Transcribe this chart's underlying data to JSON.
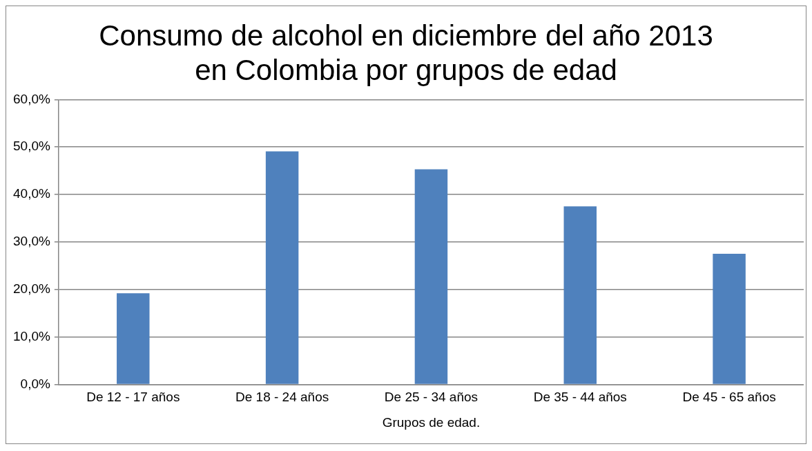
{
  "chart_data": {
    "type": "bar",
    "title": "Consumo de alcohol en diciembre del año 2013 en Colombia por grupos de edad",
    "categories": [
      "De 12 - 17 años",
      "De 18 - 24 años",
      "De 25 - 34 años",
      "De 35 - 44 años",
      "De 45 - 65 años"
    ],
    "values": [
      19.2,
      49.1,
      45.3,
      37.5,
      27.5
    ],
    "color": "#4f81bd",
    "xlabel": "Grupos de edad.",
    "ylim": [
      0,
      60
    ],
    "yticks": [
      {
        "value": 0,
        "label": "0,0%"
      },
      {
        "value": 10,
        "label": "10,0%"
      },
      {
        "value": 20,
        "label": "20,0%"
      },
      {
        "value": 30,
        "label": "30,0%"
      },
      {
        "value": 40,
        "label": "40,0%"
      },
      {
        "value": 50,
        "label": "50,0%"
      },
      {
        "value": 60,
        "label": "60,0%"
      }
    ],
    "grid": "y",
    "legend": false
  }
}
